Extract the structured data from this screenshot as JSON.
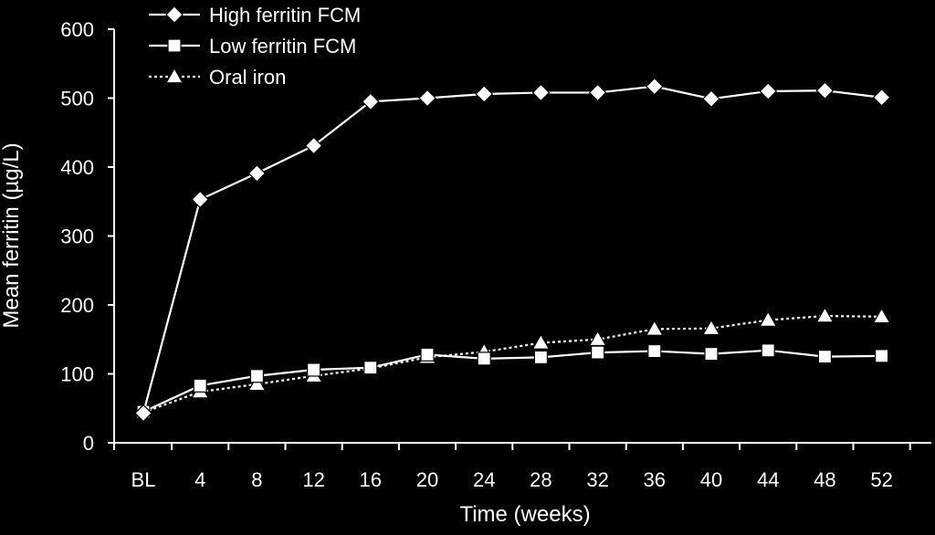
{
  "chart_data": {
    "type": "line",
    "title": "",
    "xlabel": "Time (weeks)",
    "ylabel": "Mean ferritin (µg/L)",
    "ylim": [
      0,
      600
    ],
    "yticks": [
      "0",
      "100",
      "200",
      "300",
      "400",
      "500",
      "600"
    ],
    "categories": [
      "BL",
      "4",
      "8",
      "12",
      "16",
      "20",
      "24",
      "28",
      "32",
      "36",
      "40",
      "44",
      "48",
      "52"
    ],
    "legend_position": "top-left",
    "grid": false,
    "series": [
      {
        "name": "High ferritin FCM",
        "marker": "diamond",
        "line_style": "solid",
        "values": [
          43,
          353,
          391,
          431,
          495,
          500,
          506,
          508,
          508,
          517,
          499,
          510,
          511,
          501
        ]
      },
      {
        "name": "Low ferritin FCM",
        "marker": "square",
        "line_style": "solid",
        "values": [
          45,
          83,
          97,
          106,
          109,
          128,
          122,
          124,
          131,
          133,
          129,
          134,
          125,
          126
        ]
      },
      {
        "name": "Oral iron",
        "marker": "triangle",
        "line_style": "dotted",
        "values": [
          44,
          74,
          85,
          97,
          108,
          124,
          132,
          145,
          150,
          165,
          166,
          178,
          184,
          183
        ]
      }
    ],
    "colors": {
      "background": "#000000",
      "foreground": "#ffffff"
    }
  }
}
